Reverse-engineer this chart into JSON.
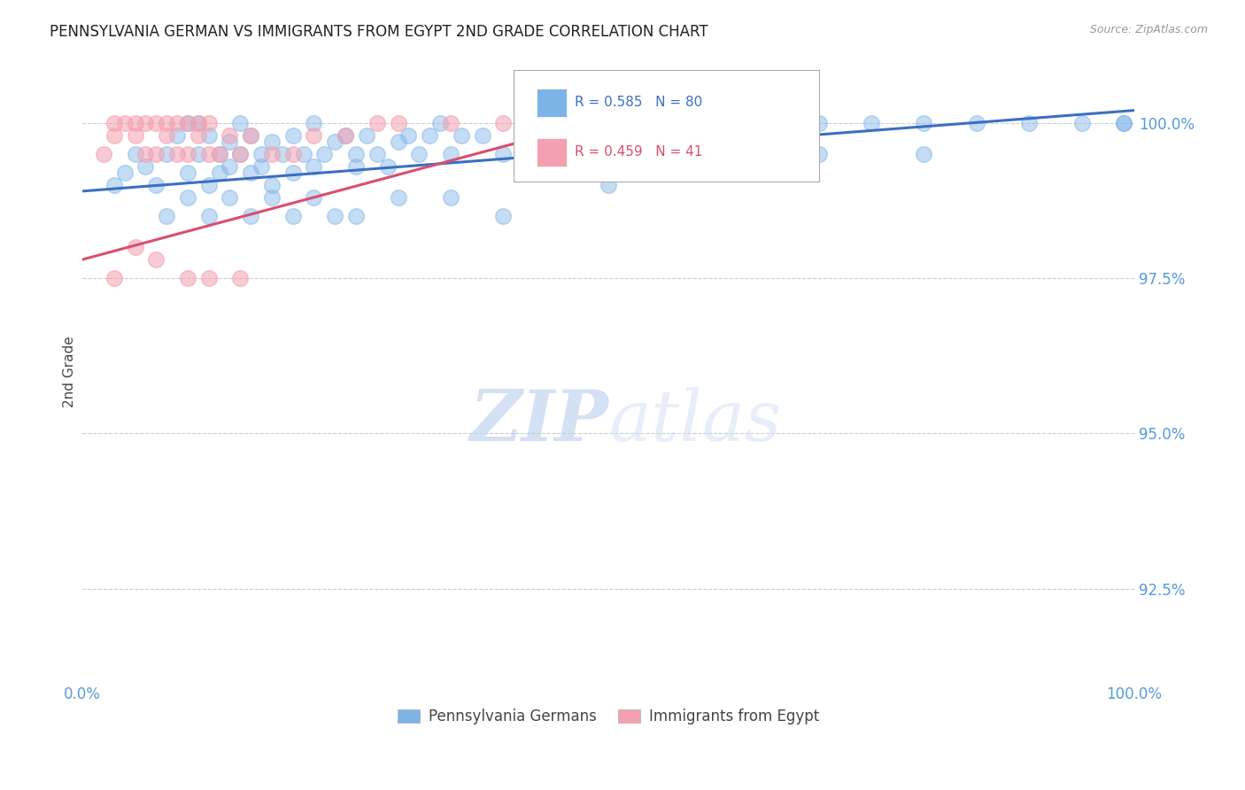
{
  "title": "PENNSYLVANIA GERMAN VS IMMIGRANTS FROM EGYPT 2ND GRADE CORRELATION CHART",
  "source": "Source: ZipAtlas.com",
  "ylabel": "2nd Grade",
  "xlim": [
    0.0,
    100.0
  ],
  "ylim": [
    91.0,
    101.0
  ],
  "yticks": [
    92.5,
    95.0,
    97.5,
    100.0
  ],
  "ytick_labels": [
    "92.5%",
    "95.0%",
    "97.5%",
    "100.0%"
  ],
  "xticks": [
    0.0,
    100.0
  ],
  "xtick_labels": [
    "0.0%",
    "100.0%"
  ],
  "blue_color": "#7EB3E8",
  "pink_color": "#F4A0B0",
  "blue_line_color": "#3B6FC4",
  "pink_line_color": "#D94E6E",
  "legend_blue_label": "Pennsylvania Germans",
  "legend_pink_label": "Immigrants from Egypt",
  "R_blue": 0.585,
  "N_blue": 80,
  "R_pink": 0.459,
  "N_pink": 41,
  "watermark_zip": "ZIP",
  "watermark_atlas": "atlas",
  "background_color": "#ffffff",
  "grid_color": "#cccccc",
  "tick_label_color": "#5599DD",
  "blue_scatter_x": [
    3,
    4,
    5,
    6,
    7,
    8,
    9,
    10,
    10,
    11,
    11,
    12,
    12,
    13,
    13,
    14,
    14,
    15,
    15,
    16,
    16,
    17,
    17,
    18,
    18,
    19,
    20,
    20,
    21,
    22,
    22,
    23,
    24,
    25,
    26,
    26,
    27,
    28,
    29,
    30,
    31,
    32,
    33,
    34,
    35,
    36,
    38,
    40,
    42,
    45,
    48,
    50,
    55,
    60,
    65,
    70,
    75,
    80,
    85,
    90,
    95,
    99,
    8,
    10,
    12,
    14,
    16,
    18,
    20,
    22,
    24,
    26,
    30,
    35,
    40,
    50,
    60,
    70,
    80,
    99
  ],
  "blue_scatter_y": [
    99.0,
    99.2,
    99.5,
    99.3,
    99.0,
    99.5,
    99.8,
    100.0,
    99.2,
    99.5,
    100.0,
    99.0,
    99.8,
    99.5,
    99.2,
    99.3,
    99.7,
    100.0,
    99.5,
    99.8,
    99.2,
    99.5,
    99.3,
    99.0,
    99.7,
    99.5,
    99.8,
    99.2,
    99.5,
    100.0,
    99.3,
    99.5,
    99.7,
    99.8,
    99.5,
    99.3,
    99.8,
    99.5,
    99.3,
    99.7,
    99.8,
    99.5,
    99.8,
    100.0,
    99.5,
    99.8,
    99.8,
    99.5,
    99.8,
    100.0,
    100.0,
    100.0,
    100.0,
    100.0,
    100.0,
    100.0,
    100.0,
    100.0,
    100.0,
    100.0,
    100.0,
    100.0,
    98.5,
    98.8,
    98.5,
    98.8,
    98.5,
    98.8,
    98.5,
    98.8,
    98.5,
    98.5,
    98.8,
    98.8,
    98.5,
    99.0,
    99.2,
    99.5,
    99.5,
    100.0
  ],
  "pink_scatter_x": [
    2,
    3,
    3,
    4,
    5,
    5,
    6,
    6,
    7,
    7,
    8,
    8,
    9,
    9,
    10,
    10,
    11,
    11,
    12,
    12,
    13,
    14,
    15,
    16,
    18,
    20,
    22,
    25,
    28,
    30,
    35,
    40,
    45,
    52,
    60,
    3,
    5,
    7,
    10,
    12,
    15
  ],
  "pink_scatter_y": [
    99.5,
    100.0,
    99.8,
    100.0,
    99.8,
    100.0,
    100.0,
    99.5,
    100.0,
    99.5,
    99.8,
    100.0,
    99.5,
    100.0,
    99.5,
    100.0,
    99.8,
    100.0,
    99.5,
    100.0,
    99.5,
    99.8,
    99.5,
    99.8,
    99.5,
    99.5,
    99.8,
    99.8,
    100.0,
    100.0,
    100.0,
    100.0,
    100.0,
    100.0,
    100.0,
    97.5,
    98.0,
    97.8,
    97.5,
    97.5,
    97.5
  ],
  "blue_line_x0": 0.0,
  "blue_line_y0": 98.9,
  "blue_line_x1": 100.0,
  "blue_line_y1": 100.2,
  "pink_line_x0": 0.0,
  "pink_line_y0": 97.8,
  "pink_line_x1": 55.0,
  "pink_line_y1": 100.3
}
